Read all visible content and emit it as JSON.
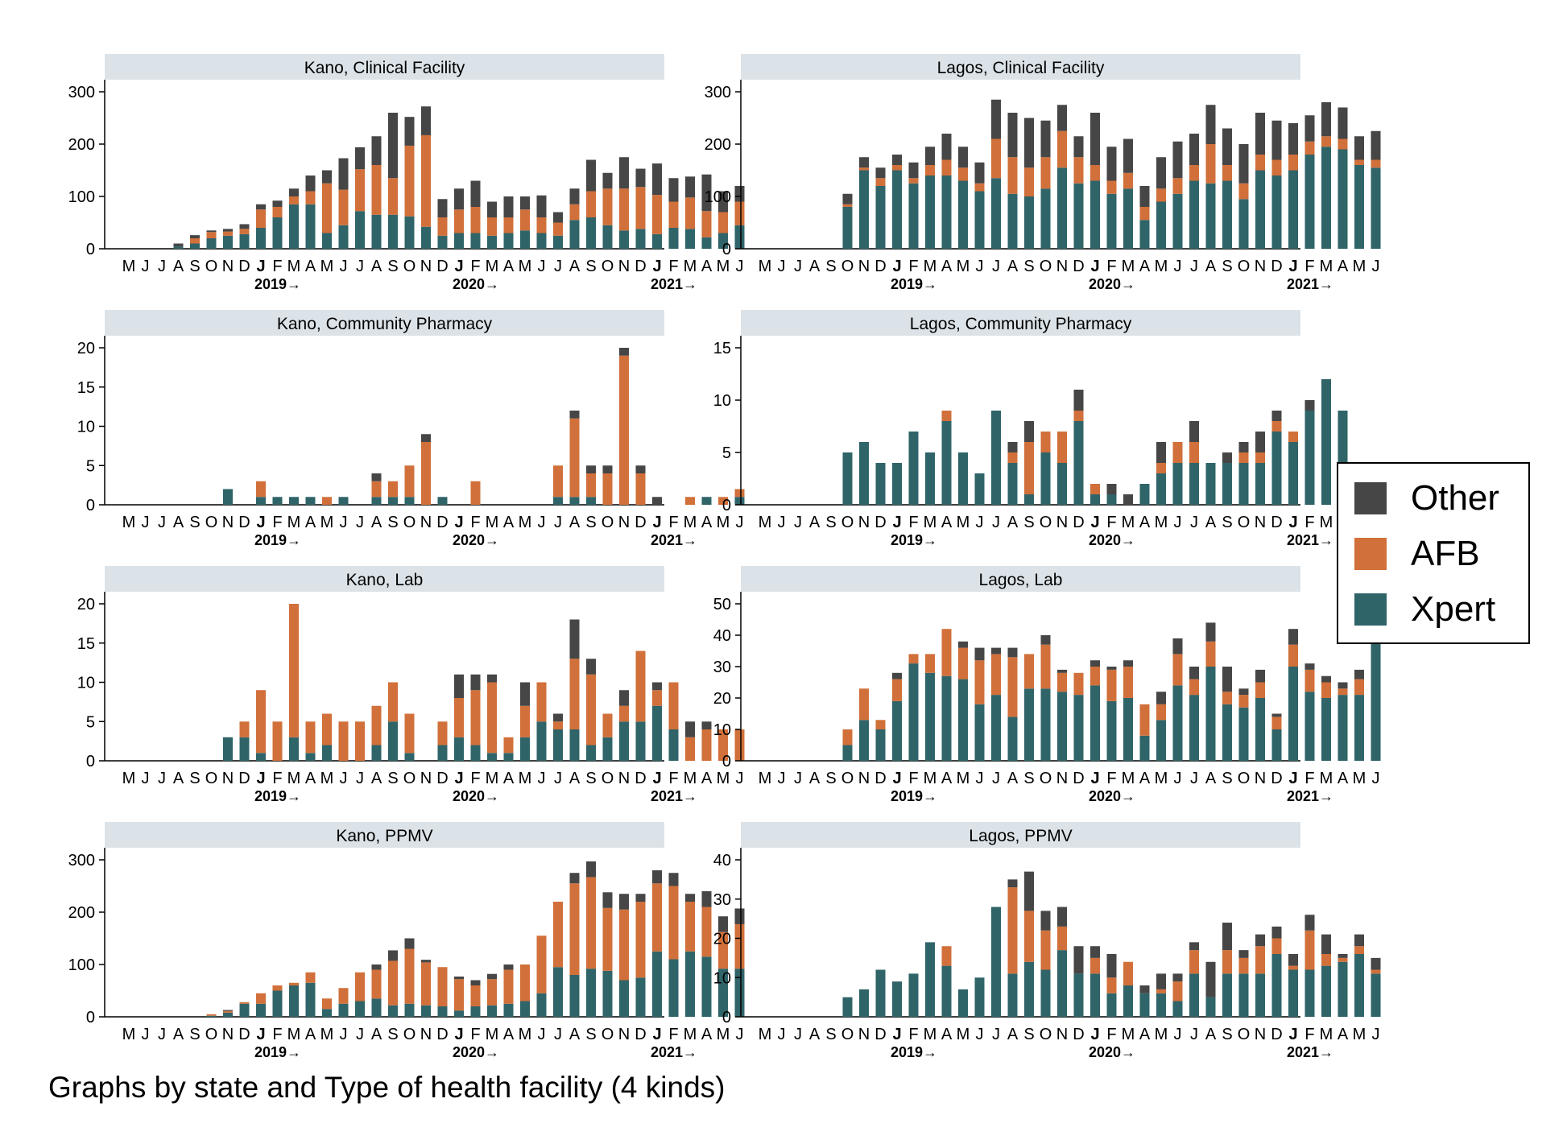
{
  "colors": {
    "Other": "#464646",
    "AFB": "#d1703a",
    "Xpert": "#2f6469",
    "strip": "#dce3e8",
    "axis": "#000000"
  },
  "month_labels": [
    "M",
    "J",
    "J",
    "A",
    "S",
    "O",
    "N",
    "D",
    "J",
    "F",
    "M",
    "A",
    "M",
    "J",
    "J",
    "A",
    "S",
    "O",
    "N",
    "D",
    "J",
    "F",
    "M",
    "A",
    "M",
    "J",
    "J",
    "A",
    "S",
    "O",
    "N",
    "D",
    "J",
    "F",
    "M",
    "A",
    "M",
    "J"
  ],
  "bold_month_index": [
    8,
    20,
    32
  ],
  "year_labels": [
    {
      "index": 8,
      "text": "2019→"
    },
    {
      "index": 20,
      "text": "2020→"
    },
    {
      "index": 32,
      "text": "2021→"
    }
  ],
  "legend": {
    "items": [
      "Other",
      "AFB",
      "Xpert"
    ]
  },
  "footnote": "Graphs by state and Type of health facility (4 kinds)",
  "chart_data": [
    {
      "type": "bar",
      "stacked": true,
      "title": "Kano, Clinical Facility",
      "ylim": [
        0,
        300
      ],
      "yticks": [
        0,
        100,
        200,
        300
      ],
      "series": [
        {
          "name": "Xpert",
          "values": [
            0,
            0,
            0,
            4,
            10,
            20,
            25,
            28,
            40,
            60,
            85,
            85,
            30,
            45,
            72,
            65,
            65,
            62,
            42,
            25,
            30,
            30,
            25,
            30,
            35,
            30,
            25,
            55,
            60,
            45,
            35,
            38,
            28,
            40,
            38,
            22,
            30,
            45,
            40,
            40,
            38,
            60
          ]
        },
        {
          "name": "AFB",
          "values": [
            0,
            0,
            0,
            0,
            10,
            12,
            8,
            10,
            35,
            20,
            15,
            25,
            95,
            68,
            80,
            95,
            70,
            135,
            175,
            35,
            45,
            50,
            35,
            30,
            40,
            30,
            25,
            30,
            50,
            70,
            80,
            80,
            75,
            50,
            60,
            50,
            40,
            45,
            45,
            30,
            25,
            10
          ]
        },
        {
          "name": "Other",
          "values": [
            0,
            0,
            0,
            6,
            6,
            3,
            5,
            9,
            10,
            12,
            15,
            30,
            25,
            60,
            42,
            55,
            125,
            55,
            55,
            35,
            40,
            50,
            30,
            40,
            25,
            42,
            20,
            30,
            60,
            30,
            60,
            35,
            60,
            45,
            40,
            70,
            40,
            30,
            30,
            35,
            50,
            45
          ]
        }
      ]
    },
    {
      "type": "bar",
      "stacked": true,
      "title": "Lagos, Clinical Facility",
      "ylim": [
        0,
        300
      ],
      "yticks": [
        0,
        100,
        200,
        300
      ],
      "series": [
        {
          "name": "Xpert",
          "values": [
            0,
            0,
            0,
            0,
            0,
            80,
            150,
            120,
            150,
            125,
            140,
            140,
            130,
            110,
            135,
            105,
            100,
            115,
            155,
            125,
            130,
            105,
            115,
            55,
            90,
            105,
            130,
            125,
            130,
            95,
            150,
            140,
            150,
            180,
            195,
            190,
            160,
            155
          ]
        },
        {
          "name": "AFB",
          "values": [
            0,
            0,
            0,
            0,
            0,
            5,
            5,
            15,
            10,
            10,
            20,
            30,
            25,
            15,
            75,
            70,
            55,
            60,
            70,
            50,
            30,
            25,
            30,
            25,
            25,
            30,
            30,
            75,
            30,
            30,
            30,
            30,
            30,
            25,
            20,
            20,
            10,
            15
          ]
        },
        {
          "name": "Other",
          "values": [
            0,
            0,
            0,
            0,
            0,
            20,
            20,
            20,
            20,
            30,
            35,
            50,
            40,
            40,
            75,
            85,
            95,
            70,
            50,
            40,
            100,
            65,
            65,
            40,
            60,
            70,
            60,
            75,
            70,
            75,
            80,
            75,
            60,
            50,
            65,
            60,
            45,
            55
          ]
        }
      ]
    },
    {
      "type": "bar",
      "stacked": true,
      "title": "Kano, Community Pharmacy",
      "ylim": [
        0,
        20
      ],
      "yticks": [
        0,
        5,
        10,
        15,
        20
      ],
      "series": [
        {
          "name": "Xpert",
          "values": [
            0,
            0,
            0,
            0,
            0,
            0,
            2,
            0,
            1,
            1,
            1,
            1,
            0,
            1,
            0,
            1,
            1,
            1,
            0,
            1,
            0,
            0,
            0,
            0,
            0,
            0,
            1,
            1,
            1,
            0,
            0,
            0,
            0,
            0,
            0,
            1,
            0,
            1,
            0,
            0,
            0,
            0
          ]
        },
        {
          "name": "AFB",
          "values": [
            0,
            0,
            0,
            0,
            0,
            0,
            0,
            0,
            2,
            0,
            0,
            0,
            1,
            0,
            0,
            2,
            2,
            4,
            8,
            0,
            0,
            3,
            0,
            0,
            0,
            0,
            4,
            10,
            3,
            4,
            19,
            4,
            0,
            0,
            1,
            0,
            1,
            1,
            2,
            3,
            2,
            1
          ]
        },
        {
          "name": "Other",
          "values": [
            0,
            0,
            0,
            0,
            0,
            0,
            0,
            0,
            0,
            0,
            0,
            0,
            0,
            0,
            0,
            1,
            0,
            0,
            1,
            0,
            0,
            0,
            0,
            0,
            0,
            0,
            0,
            1,
            1,
            1,
            1,
            1,
            1,
            0,
            0,
            0,
            0,
            0,
            1,
            0,
            0,
            0
          ]
        }
      ]
    },
    {
      "type": "bar",
      "stacked": true,
      "title": "Lagos, Community Pharmacy",
      "ylim": [
        0,
        15
      ],
      "yticks": [
        0,
        5,
        10,
        15
      ],
      "series": [
        {
          "name": "Xpert",
          "values": [
            0,
            0,
            0,
            0,
            0,
            5,
            6,
            4,
            4,
            7,
            5,
            8,
            5,
            3,
            9,
            4,
            1,
            5,
            4,
            8,
            1,
            1,
            0,
            2,
            3,
            4,
            4,
            4,
            4,
            4,
            4,
            7,
            6,
            9,
            12,
            9,
            4,
            0
          ]
        },
        {
          "name": "AFB",
          "values": [
            0,
            0,
            0,
            0,
            0,
            0,
            0,
            0,
            0,
            0,
            0,
            1,
            0,
            0,
            0,
            1,
            5,
            2,
            3,
            1,
            1,
            0,
            0,
            0,
            1,
            2,
            2,
            0,
            0,
            1,
            1,
            1,
            1,
            0,
            0,
            0,
            0,
            0
          ]
        },
        {
          "name": "Other",
          "values": [
            0,
            0,
            0,
            0,
            0,
            0,
            0,
            0,
            0,
            0,
            0,
            0,
            0,
            0,
            0,
            1,
            2,
            0,
            0,
            2,
            0,
            1,
            1,
            0,
            2,
            0,
            2,
            0,
            1,
            1,
            2,
            1,
            0,
            1,
            0,
            0,
            0,
            0
          ]
        }
      ]
    },
    {
      "type": "bar",
      "stacked": true,
      "title": "Kano, Lab",
      "ylim": [
        0,
        20
      ],
      "yticks": [
        0,
        5,
        10,
        15,
        20
      ],
      "series": [
        {
          "name": "Xpert",
          "values": [
            0,
            0,
            0,
            0,
            0,
            0,
            3,
            3,
            1,
            0,
            3,
            1,
            2,
            0,
            0,
            2,
            5,
            1,
            0,
            2,
            3,
            2,
            1,
            1,
            3,
            5,
            4,
            4,
            2,
            3,
            5,
            5,
            7,
            4,
            0,
            0,
            0,
            0,
            0,
            0,
            0,
            0
          ]
        },
        {
          "name": "AFB",
          "values": [
            0,
            0,
            0,
            0,
            0,
            0,
            0,
            2,
            8,
            5,
            17,
            4,
            4,
            5,
            5,
            5,
            5,
            5,
            0,
            3,
            5,
            7,
            9,
            2,
            4,
            5,
            1,
            9,
            9,
            3,
            2,
            9,
            2,
            6,
            3,
            4,
            4,
            4,
            3,
            2,
            1,
            1
          ]
        },
        {
          "name": "Other",
          "values": [
            0,
            0,
            0,
            0,
            0,
            0,
            0,
            0,
            0,
            0,
            0,
            0,
            0,
            0,
            0,
            0,
            0,
            0,
            0,
            0,
            3,
            2,
            1,
            0,
            3,
            0,
            1,
            5,
            2,
            0,
            2,
            0,
            1,
            0,
            2,
            1,
            0,
            0,
            0,
            0,
            0,
            0
          ]
        }
      ]
    },
    {
      "type": "bar",
      "stacked": true,
      "title": "Lagos, Lab",
      "ylim": [
        0,
        50
      ],
      "yticks": [
        0,
        10,
        20,
        30,
        40,
        50
      ],
      "series": [
        {
          "name": "Xpert",
          "values": [
            0,
            0,
            0,
            0,
            0,
            5,
            13,
            10,
            19,
            31,
            28,
            27,
            26,
            18,
            21,
            14,
            23,
            23,
            22,
            21,
            24,
            19,
            20,
            8,
            13,
            24,
            21,
            30,
            18,
            17,
            20,
            10,
            30,
            22,
            20,
            21,
            21,
            44
          ]
        },
        {
          "name": "AFB",
          "values": [
            0,
            0,
            0,
            0,
            0,
            5,
            10,
            3,
            7,
            3,
            6,
            15,
            10,
            14,
            13,
            19,
            11,
            14,
            6,
            7,
            6,
            10,
            10,
            10,
            5,
            10,
            5,
            8,
            4,
            4,
            5,
            4,
            7,
            7,
            5,
            2,
            5,
            1
          ]
        },
        {
          "name": "Other",
          "values": [
            0,
            0,
            0,
            0,
            0,
            0,
            0,
            0,
            2,
            0,
            0,
            0,
            2,
            4,
            2,
            3,
            0,
            3,
            1,
            0,
            2,
            1,
            2,
            0,
            4,
            5,
            4,
            6,
            8,
            2,
            4,
            1,
            5,
            2,
            2,
            2,
            3,
            5
          ]
        }
      ]
    },
    {
      "type": "bar",
      "stacked": true,
      "title": "Kano, PPMV",
      "ylim": [
        0,
        300
      ],
      "yticks": [
        0,
        100,
        200,
        300
      ],
      "series": [
        {
          "name": "Xpert",
          "values": [
            0,
            0,
            0,
            0,
            0,
            2,
            8,
            25,
            25,
            50,
            60,
            65,
            15,
            25,
            30,
            35,
            22,
            25,
            22,
            20,
            12,
            20,
            22,
            25,
            30,
            45,
            95,
            80,
            92,
            88,
            70,
            75,
            125,
            110,
            125,
            115,
            92,
            92
          ]
        },
        {
          "name": "AFB",
          "values": [
            0,
            0,
            0,
            0,
            0,
            3,
            3,
            3,
            20,
            10,
            5,
            20,
            20,
            30,
            55,
            55,
            85,
            105,
            82,
            75,
            60,
            40,
            50,
            65,
            70,
            110,
            125,
            175,
            175,
            120,
            135,
            145,
            130,
            140,
            95,
            95,
            70,
            85
          ]
        },
        {
          "name": "Other",
          "values": [
            0,
            0,
            0,
            0,
            0,
            0,
            2,
            0,
            0,
            0,
            0,
            0,
            0,
            0,
            0,
            10,
            20,
            20,
            5,
            0,
            5,
            10,
            10,
            10,
            0,
            0,
            0,
            20,
            30,
            30,
            30,
            15,
            25,
            25,
            15,
            30,
            30,
            30
          ]
        }
      ]
    },
    {
      "type": "bar",
      "stacked": true,
      "title": "Lagos, PPMV",
      "ylim": [
        0,
        40
      ],
      "yticks": [
        0,
        10,
        20,
        30,
        40
      ],
      "series": [
        {
          "name": "Xpert",
          "values": [
            0,
            0,
            0,
            0,
            0,
            5,
            7,
            12,
            9,
            11,
            19,
            13,
            7,
            10,
            28,
            11,
            14,
            12,
            17,
            11,
            11,
            6,
            8,
            6,
            6,
            4,
            11,
            5,
            11,
            11,
            11,
            16,
            12,
            12,
            13,
            14,
            16,
            11
          ]
        },
        {
          "name": "AFB",
          "values": [
            0,
            0,
            0,
            0,
            0,
            0,
            0,
            0,
            0,
            0,
            0,
            5,
            0,
            0,
            0,
            22,
            13,
            10,
            6,
            0,
            4,
            4,
            6,
            0,
            1,
            5,
            6,
            0,
            6,
            4,
            7,
            4,
            1,
            10,
            3,
            1,
            2,
            1
          ]
        },
        {
          "name": "Other",
          "values": [
            0,
            0,
            0,
            0,
            0,
            0,
            0,
            0,
            0,
            0,
            0,
            0,
            0,
            0,
            0,
            2,
            10,
            5,
            5,
            7,
            3,
            6,
            0,
            2,
            4,
            2,
            2,
            9,
            7,
            2,
            3,
            3,
            3,
            4,
            5,
            1,
            3,
            3
          ]
        }
      ]
    }
  ]
}
